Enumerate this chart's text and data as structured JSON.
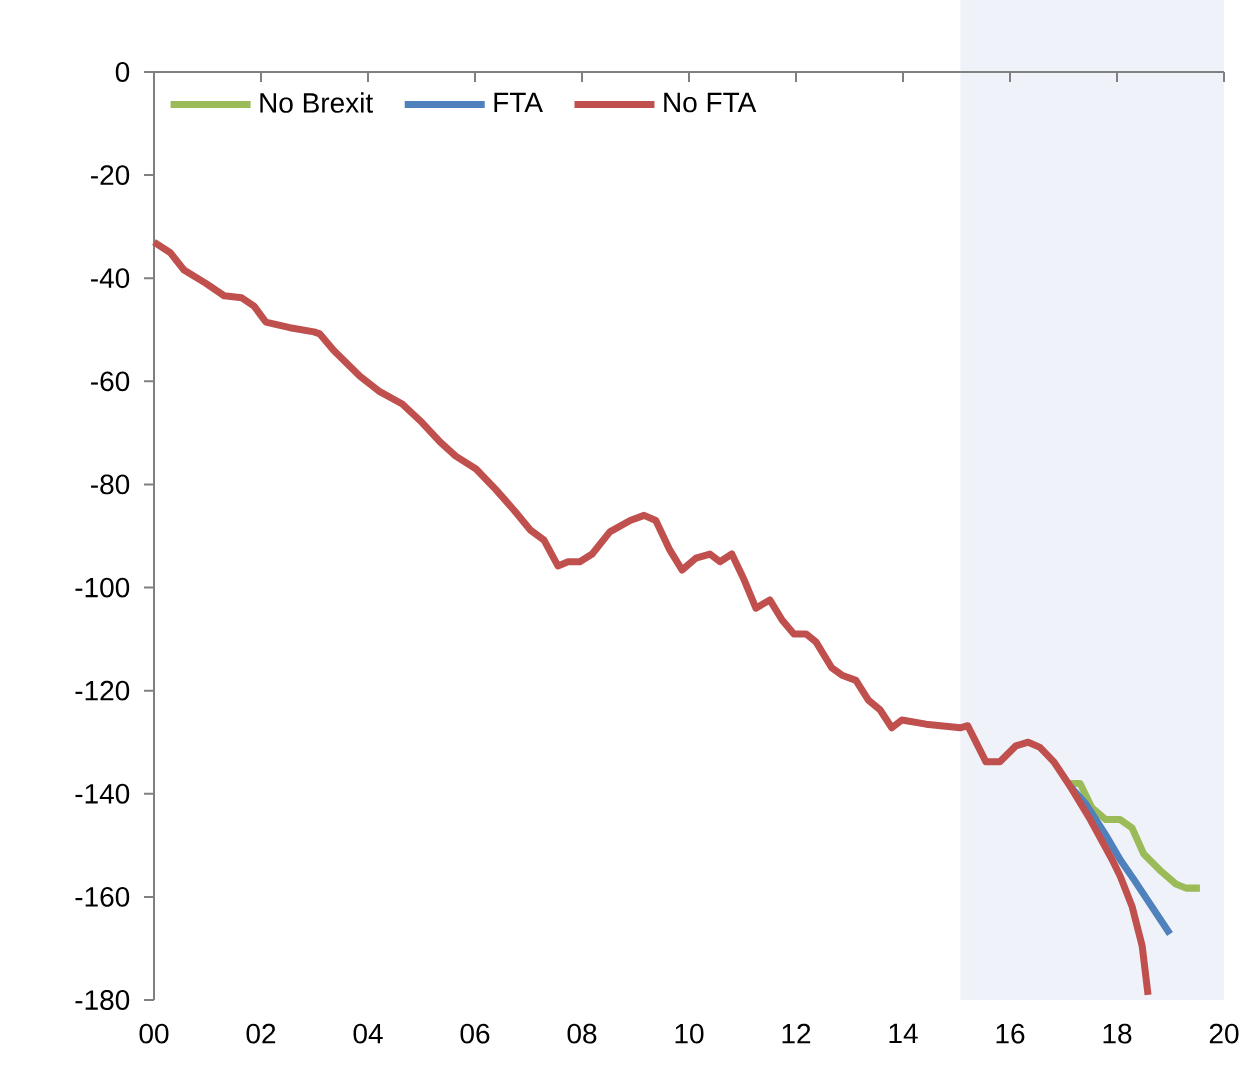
{
  "chart_data": {
    "type": "line",
    "xlim": [
      0,
      20
    ],
    "ylim": [
      -180,
      0
    ],
    "xticks": [
      {
        "value": 0,
        "label": "00"
      },
      {
        "value": 2,
        "label": "02"
      },
      {
        "value": 4,
        "label": "04"
      },
      {
        "value": 6,
        "label": "06"
      },
      {
        "value": 8,
        "label": "08"
      },
      {
        "value": 10,
        "label": "10"
      },
      {
        "value": 12,
        "label": "12"
      },
      {
        "value": 14,
        "label": "14"
      },
      {
        "value": 16,
        "label": "16"
      },
      {
        "value": 18,
        "label": "18"
      },
      {
        "value": 20,
        "label": "20"
      }
    ],
    "yticks": [
      -180,
      -160,
      -140,
      -120,
      -100,
      -80,
      -60,
      -40,
      -20,
      0
    ],
    "series": [
      {
        "name": "No Brexit",
        "color": "#9bbb59",
        "x": [
          17.08,
          17.31,
          17.53,
          17.79,
          18.06,
          18.28,
          18.5,
          18.8,
          19.1,
          19.29,
          19.55
        ],
        "values": [
          -138,
          -138,
          -142.7,
          -145,
          -145,
          -146.6,
          -151.7,
          -154.8,
          -157.5,
          -158.3,
          -158.3
        ]
      },
      {
        "name": "FTA",
        "color": "#4f81bd",
        "x": [
          17.12,
          17.42,
          17.79,
          18.06,
          18.32,
          18.62,
          18.99
        ],
        "values": [
          -138.5,
          -142,
          -148,
          -152.8,
          -156.7,
          -161.4,
          -167.2
        ]
      },
      {
        "name": "No FTA",
        "color": "#c0504d",
        "x": [
          0,
          0.3,
          0.56,
          0.97,
          1.31,
          1.64,
          1.87,
          2.09,
          2.54,
          2.99,
          3.1,
          3.36,
          3.85,
          4.22,
          4.64,
          5.01,
          5.35,
          5.64,
          6.02,
          6.39,
          6.73,
          7.03,
          7.29,
          7.55,
          7.74,
          7.96,
          8.19,
          8.52,
          8.9,
          9.16,
          9.38,
          9.64,
          9.87,
          10.13,
          10.39,
          10.58,
          10.8,
          11.03,
          11.25,
          11.51,
          11.74,
          11.96,
          12.19,
          12.37,
          12.67,
          12.86,
          13.12,
          13.35,
          13.57,
          13.79,
          13.98,
          14.43,
          15.07,
          15.21,
          15.55,
          15.81,
          16.11,
          16.34,
          16.56,
          16.82,
          17.12,
          17.5,
          17.91,
          18.06,
          18.28,
          18.47,
          18.58
        ],
        "values": [
          -33,
          -35,
          -38.4,
          -41,
          -43.4,
          -43.8,
          -45.4,
          -48.5,
          -49.6,
          -50.4,
          -50.8,
          -54,
          -59,
          -62,
          -64.4,
          -68,
          -71.8,
          -74.5,
          -77,
          -81,
          -85,
          -88.8,
          -90.8,
          -95.8,
          -95,
          -95,
          -93.5,
          -89.2,
          -87,
          -86,
          -87,
          -92.7,
          -96.6,
          -94.3,
          -93.5,
          -95,
          -93.5,
          -98.5,
          -104,
          -102.4,
          -106.3,
          -109,
          -109,
          -110.5,
          -115.6,
          -117,
          -118,
          -121.8,
          -123.7,
          -127.2,
          -125.7,
          -126.5,
          -127.2,
          -126.8,
          -133.8,
          -133.8,
          -130.7,
          -130,
          -131,
          -133.8,
          -138.5,
          -145,
          -152.8,
          -156,
          -161.8,
          -169.5,
          -179
        ]
      }
    ],
    "bands": [
      {
        "axis": "x",
        "from": 15.07,
        "to": 20,
        "color": "#eff3f9"
      }
    ],
    "legend": "top left"
  }
}
